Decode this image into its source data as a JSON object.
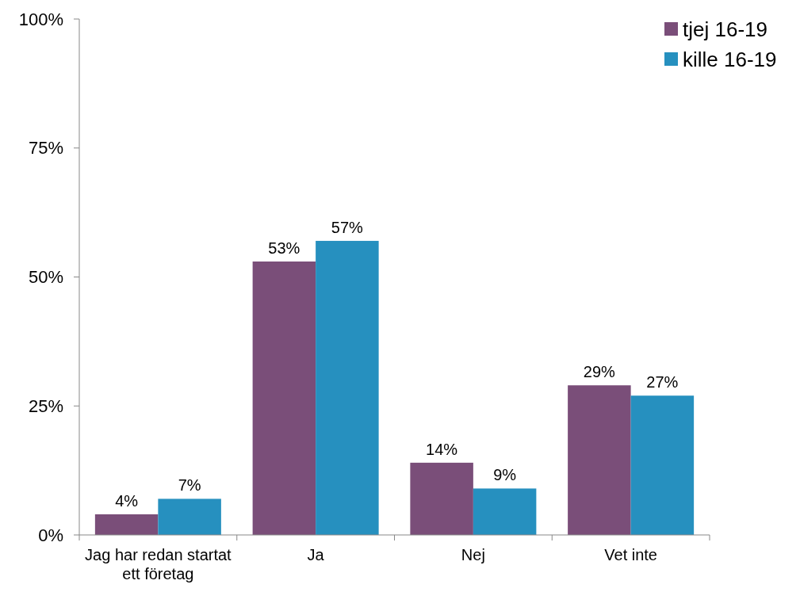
{
  "chart_data": {
    "type": "bar",
    "categories": [
      "Jag har redan startat ett företag",
      "Ja",
      "Nej",
      "Vet inte"
    ],
    "series": [
      {
        "name": "tjej 16-19",
        "color": "#7a4e79",
        "values": [
          4,
          53,
          14,
          29
        ],
        "value_labels": [
          "4%",
          "53%",
          "14%",
          "29%"
        ]
      },
      {
        "name": "kille 16-19",
        "color": "#2690bf",
        "values": [
          7,
          57,
          9,
          27
        ],
        "value_labels": [
          "7%",
          "57%",
          "9%",
          "27%"
        ]
      }
    ],
    "ylim": [
      0,
      100
    ],
    "yticks": [
      {
        "value": 0,
        "label": "0%"
      },
      {
        "value": 25,
        "label": "25%"
      },
      {
        "value": 50,
        "label": "50%"
      },
      {
        "value": 75,
        "label": "75%"
      },
      {
        "value": 100,
        "label": "100%"
      }
    ],
    "grid": false,
    "legend": "top right"
  }
}
